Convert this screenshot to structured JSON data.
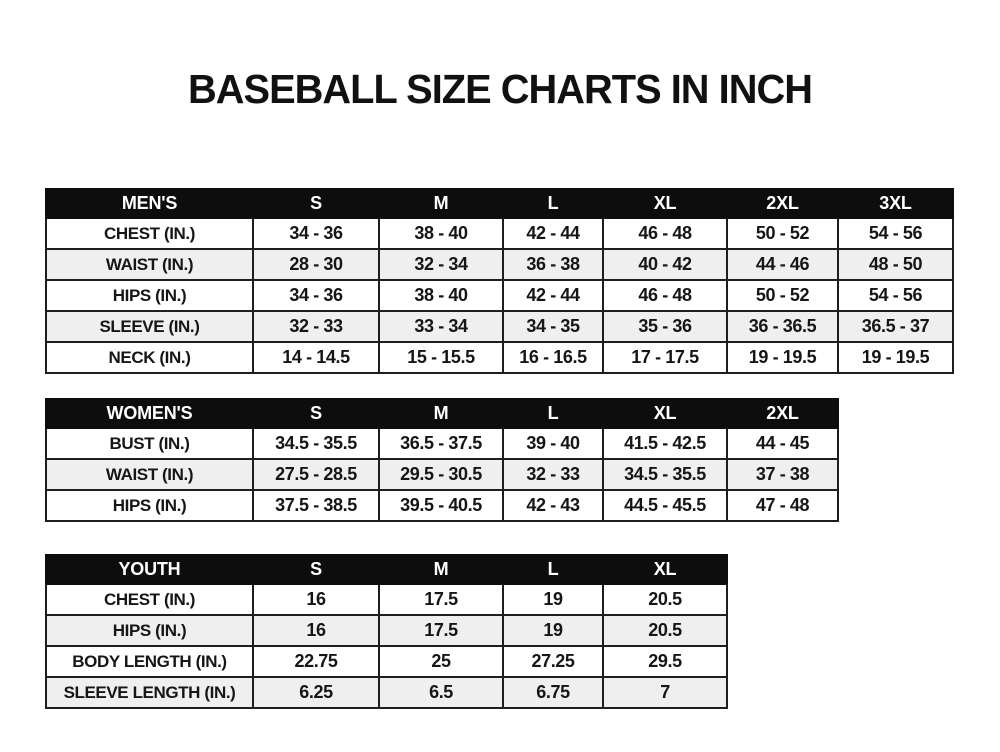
{
  "title": "BASEBALL SIZE CHARTS IN INCH",
  "colors": {
    "background": "#ffffff",
    "header_bg": "#0d0d0d",
    "header_text": "#ffffff",
    "row_alt_bg": "#efefef",
    "border": "#1e1e1e",
    "text": "#161616"
  },
  "chart_data": [
    {
      "type": "table",
      "title": "MEN'S",
      "columns": [
        "S",
        "M",
        "L",
        "XL",
        "2XL",
        "3XL"
      ],
      "rows": [
        {
          "label": "CHEST (IN.)",
          "values": [
            "34 - 36",
            "38 - 40",
            "42 - 44",
            "46 - 48",
            "50 - 52",
            "54 - 56"
          ]
        },
        {
          "label": "WAIST (IN.)",
          "values": [
            "28 - 30",
            "32 - 34",
            "36 - 38",
            "40 - 42",
            "44 - 46",
            "48 - 50"
          ]
        },
        {
          "label": "HIPS (IN.)",
          "values": [
            "34 - 36",
            "38 - 40",
            "42 - 44",
            "46 - 48",
            "50 - 52",
            "54 - 56"
          ]
        },
        {
          "label": "SLEEVE (IN.)",
          "values": [
            "32 - 33",
            "33 - 34",
            "34 - 35",
            "35 - 36",
            "36 - 36.5",
            "36.5 - 37"
          ]
        },
        {
          "label": "NECK (IN.)",
          "values": [
            "14 - 14.5",
            "15 - 15.5",
            "16 - 16.5",
            "17 - 17.5",
            "19 - 19.5",
            "19 - 19.5"
          ]
        }
      ]
    },
    {
      "type": "table",
      "title": "WOMEN'S",
      "columns": [
        "S",
        "M",
        "L",
        "XL",
        "2XL"
      ],
      "rows": [
        {
          "label": "BUST (IN.)",
          "values": [
            "34.5 - 35.5",
            "36.5 - 37.5",
            "39 - 40",
            "41.5 - 42.5",
            "44 - 45"
          ]
        },
        {
          "label": "WAIST (IN.)",
          "values": [
            "27.5 - 28.5",
            "29.5 - 30.5",
            "32 - 33",
            "34.5 - 35.5",
            "37 - 38"
          ]
        },
        {
          "label": "HIPS (IN.)",
          "values": [
            "37.5 - 38.5",
            "39.5 - 40.5",
            "42 - 43",
            "44.5 - 45.5",
            "47 - 48"
          ]
        }
      ]
    },
    {
      "type": "table",
      "title": "YOUTH",
      "columns": [
        "S",
        "M",
        "L",
        "XL"
      ],
      "rows": [
        {
          "label": "CHEST (IN.)",
          "values": [
            "16",
            "17.5",
            "19",
            "20.5"
          ]
        },
        {
          "label": "HIPS (IN.)",
          "values": [
            "16",
            "17.5",
            "19",
            "20.5"
          ]
        },
        {
          "label": "BODY LENGTH (IN.)",
          "values": [
            "22.75",
            "25",
            "27.25",
            "29.5"
          ]
        },
        {
          "label": "SLEEVE LENGTH (IN.)",
          "values": [
            "6.25",
            "6.5",
            "6.75",
            "7"
          ]
        }
      ]
    }
  ]
}
